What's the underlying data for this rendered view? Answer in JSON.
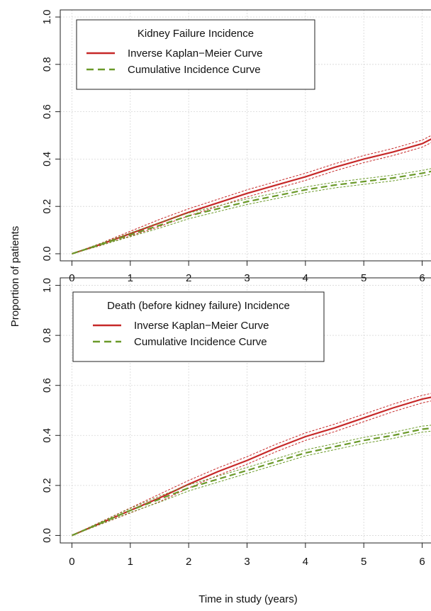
{
  "figure": {
    "ylabel": "Proportion of patients",
    "xlabel": "Time in study (years)"
  },
  "chart_data": [
    {
      "type": "line",
      "legend_title": "Kidney Failure Incidence",
      "legend_position": "top-left",
      "x_ticks": [
        "0",
        "1",
        "2",
        "3",
        "4",
        "5",
        "6"
      ],
      "y_ticks": [
        "0.0",
        "0.2",
        "0.4",
        "0.6",
        "0.8",
        "1.0"
      ],
      "xlim": [
        -0.2,
        6.2
      ],
      "ylim": [
        -0.03,
        1.03
      ],
      "grid": true,
      "colors": {
        "km": "#c62828",
        "ci": "#6b9a2a"
      },
      "series": [
        {
          "name": "Inverse Kaplan−Meier Curve",
          "style": "solid",
          "x": [
            0,
            0.5,
            1,
            1.5,
            2,
            2.5,
            3,
            3.5,
            4,
            4.5,
            5,
            5.5,
            6,
            6.2
          ],
          "y": [
            0,
            0.04,
            0.085,
            0.13,
            0.175,
            0.215,
            0.255,
            0.29,
            0.325,
            0.365,
            0.4,
            0.43,
            0.465,
            0.49
          ],
          "ci_width": 0.015
        },
        {
          "name": "Cumulative Incidence Curve",
          "style": "dashed",
          "x": [
            0,
            0.5,
            1,
            1.5,
            2,
            2.5,
            3,
            3.5,
            4,
            4.5,
            5,
            5.5,
            6,
            6.2
          ],
          "y": [
            0,
            0.04,
            0.08,
            0.12,
            0.16,
            0.19,
            0.22,
            0.245,
            0.27,
            0.29,
            0.305,
            0.32,
            0.34,
            0.35
          ],
          "ci_width": 0.012
        }
      ]
    },
    {
      "type": "line",
      "legend_title": "Death (before kidney failure) Incidence",
      "legend_position": "top-left",
      "x_ticks": [
        "0",
        "1",
        "2",
        "3",
        "4",
        "5",
        "6"
      ],
      "y_ticks": [
        "0.0",
        "0.2",
        "0.4",
        "0.6",
        "0.8",
        "1.0"
      ],
      "xlim": [
        -0.2,
        6.2
      ],
      "ylim": [
        -0.03,
        1.03
      ],
      "grid": true,
      "colors": {
        "km": "#c62828",
        "ci": "#6b9a2a"
      },
      "series": [
        {
          "name": "Inverse Kaplan−Meier Curve",
          "style": "solid",
          "x": [
            0,
            0.5,
            1,
            1.5,
            2,
            2.5,
            3,
            3.5,
            4,
            4.5,
            5,
            5.5,
            6,
            6.2
          ],
          "y": [
            0,
            0.05,
            0.1,
            0.15,
            0.205,
            0.255,
            0.3,
            0.35,
            0.395,
            0.43,
            0.47,
            0.51,
            0.545,
            0.555
          ],
          "ci_width": 0.015
        },
        {
          "name": "Cumulative Incidence Curve",
          "style": "dashed",
          "x": [
            0,
            0.5,
            1,
            1.5,
            2,
            2.5,
            3,
            3.5,
            4,
            4.5,
            5,
            5.5,
            6,
            6.2
          ],
          "y": [
            0,
            0.05,
            0.1,
            0.145,
            0.19,
            0.225,
            0.26,
            0.295,
            0.33,
            0.355,
            0.38,
            0.4,
            0.425,
            0.43
          ],
          "ci_width": 0.012
        }
      ]
    }
  ]
}
